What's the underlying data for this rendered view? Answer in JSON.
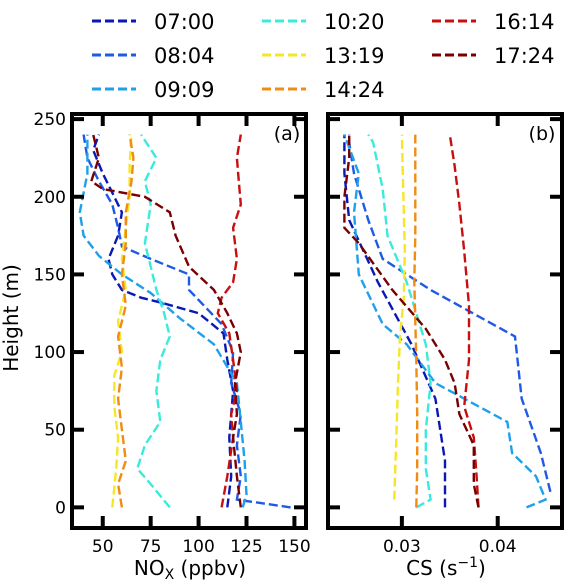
{
  "legend": {
    "entries": [
      {
        "label": "07:00",
        "color": "#0a18b4"
      },
      {
        "label": "08:04",
        "color": "#1e5ae6"
      },
      {
        "label": "09:09",
        "color": "#1ea0eb"
      },
      {
        "label": "10:20",
        "color": "#3ceadc"
      },
      {
        "label": "13:19",
        "color": "#f5e628"
      },
      {
        "label": "14:24",
        "color": "#f08c14"
      },
      {
        "label": "16:14",
        "color": "#c80f0f"
      },
      {
        "label": "17:24",
        "color": "#780000"
      }
    ]
  },
  "chart_data": [
    {
      "type": "line",
      "panel_label": "(a)",
      "xlabel_main": "NO",
      "xlabel_sub": "X",
      "xlabel_unit": " (ppbv)",
      "ylabel": "Height (m)",
      "xlim": [
        35,
        155
      ],
      "ylim": [
        -12,
        252
      ],
      "xticks": [
        50,
        75,
        100,
        125,
        150
      ],
      "yticks": [
        0,
        50,
        100,
        150,
        200,
        250
      ],
      "series": [
        {
          "name": "07:00",
          "color": "#0a18b4",
          "points": [
            [
              115,
              0
            ],
            [
              117,
              20
            ],
            [
              116,
              45
            ],
            [
              117,
              60
            ],
            [
              118,
              75
            ],
            [
              115,
              95
            ],
            [
              113,
              112
            ],
            [
              100,
              125
            ],
            [
              80,
              132
            ],
            [
              70,
              135
            ],
            [
              60,
              140
            ],
            [
              55,
              150
            ],
            [
              53,
              160
            ],
            [
              58,
              175
            ],
            [
              60,
              190
            ],
            [
              50,
              215
            ],
            [
              45,
              230
            ],
            [
              48,
              240
            ]
          ]
        },
        {
          "name": "08:04",
          "color": "#1e5ae6",
          "points": [
            [
              148,
              0
            ],
            [
              120,
              5
            ],
            [
              122,
              20
            ],
            [
              120,
              40
            ],
            [
              122,
              60
            ],
            [
              117,
              80
            ],
            [
              118,
              100
            ],
            [
              112,
              118
            ],
            [
              95,
              140
            ],
            [
              95,
              150
            ],
            [
              75,
              160
            ],
            [
              60,
              168
            ],
            [
              58,
              180
            ],
            [
              55,
              195
            ],
            [
              48,
              210
            ],
            [
              42,
              225
            ],
            [
              40,
              240
            ]
          ]
        },
        {
          "name": "09:09",
          "color": "#1ea0eb",
          "points": [
            [
              123,
              0
            ],
            [
              125,
              8
            ],
            [
              124,
              30
            ],
            [
              122,
              55
            ],
            [
              120,
              80
            ],
            [
              108,
              105
            ],
            [
              90,
              122
            ],
            [
              75,
              138
            ],
            [
              60,
              150
            ],
            [
              48,
              162
            ],
            [
              40,
              175
            ],
            [
              38,
              190
            ],
            [
              42,
              215
            ],
            [
              42,
              240
            ]
          ]
        },
        {
          "name": "10:20",
          "color": "#3ceadc",
          "points": [
            [
              85,
              0
            ],
            [
              75,
              15
            ],
            [
              68,
              25
            ],
            [
              72,
              40
            ],
            [
              80,
              55
            ],
            [
              78,
              75
            ],
            [
              80,
              95
            ],
            [
              85,
              110
            ],
            [
              82,
              125
            ],
            [
              78,
              140
            ],
            [
              75,
              155
            ],
            [
              72,
              170
            ],
            [
              75,
              195
            ],
            [
              72,
              210
            ],
            [
              78,
              225
            ],
            [
              70,
              240
            ]
          ]
        },
        {
          "name": "13:19",
          "color": "#f5e628",
          "points": [
            [
              55,
              0
            ],
            [
              57,
              25
            ],
            [
              58,
              45
            ],
            [
              56,
              65
            ],
            [
              56,
              85
            ],
            [
              60,
              100
            ],
            [
              58,
              120
            ],
            [
              62,
              140
            ],
            [
              60,
              160
            ],
            [
              62,
              180
            ],
            [
              64,
              200
            ],
            [
              64,
              220
            ],
            [
              65,
              240
            ]
          ]
        },
        {
          "name": "14:24",
          "color": "#f08c14",
          "points": [
            [
              60,
              0
            ],
            [
              58,
              15
            ],
            [
              62,
              30
            ],
            [
              60,
              50
            ],
            [
              58,
              70
            ],
            [
              60,
              90
            ],
            [
              58,
              110
            ],
            [
              62,
              130
            ],
            [
              60,
              150
            ],
            [
              62,
              170
            ],
            [
              62,
              190
            ],
            [
              65,
              210
            ],
            [
              66,
              225
            ],
            [
              64,
              240
            ]
          ]
        },
        {
          "name": "16:14",
          "color": "#c80f0f",
          "points": [
            [
              112,
              0
            ],
            [
              115,
              20
            ],
            [
              118,
              45
            ],
            [
              117,
              60
            ],
            [
              120,
              75
            ],
            [
              118,
              95
            ],
            [
              116,
              112
            ],
            [
              110,
              125
            ],
            [
              112,
              135
            ],
            [
              118,
              145
            ],
            [
              120,
              160
            ],
            [
              118,
              180
            ],
            [
              122,
              195
            ],
            [
              121,
              210
            ],
            [
              120,
              225
            ],
            [
              122,
              240
            ]
          ]
        },
        {
          "name": "17:24",
          "color": "#780000",
          "points": [
            [
              122,
              0
            ],
            [
              120,
              20
            ],
            [
              118,
              45
            ],
            [
              120,
              60
            ],
            [
              119,
              80
            ],
            [
              122,
              100
            ],
            [
              120,
              112
            ],
            [
              115,
              125
            ],
            [
              108,
              140
            ],
            [
              95,
              155
            ],
            [
              88,
              175
            ],
            [
              85,
              190
            ],
            [
              72,
              200
            ],
            [
              50,
              205
            ],
            [
              44,
              210
            ],
            [
              48,
              225
            ],
            [
              45,
              240
            ]
          ]
        }
      ]
    },
    {
      "type": "line",
      "panel_label": "(b)",
      "xlabel_main": "CS (s",
      "xlabel_sup": "−1",
      "xlabel_unit": ")",
      "xlim": [
        0.0225,
        0.0465
      ],
      "ylim": [
        -12,
        252
      ],
      "xticks": [
        0.03,
        0.04
      ],
      "xtick_labels": [
        "0.03",
        "0.04"
      ],
      "series": [
        {
          "name": "07:00",
          "color": "#0a18b4",
          "points": [
            [
              0.0345,
              0
            ],
            [
              0.0345,
              15
            ],
            [
              0.0345,
              30
            ],
            [
              0.0335,
              70
            ],
            [
              0.031,
              105
            ],
            [
              0.0275,
              145
            ],
            [
              0.0245,
              185
            ],
            [
              0.024,
              215
            ],
            [
              0.024,
              240
            ]
          ]
        },
        {
          "name": "08:04",
          "color": "#1e5ae6",
          "points": [
            [
              0.0455,
              10
            ],
            [
              0.0445,
              35
            ],
            [
              0.0425,
              70
            ],
            [
              0.0418,
              110
            ],
            [
              0.033,
              140
            ],
            [
              0.028,
              160
            ],
            [
              0.0265,
              185
            ],
            [
              0.025,
              215
            ],
            [
              0.0245,
              235
            ],
            [
              0.0245,
              240
            ]
          ]
        },
        {
          "name": "09:09",
          "color": "#1ea0eb",
          "points": [
            [
              0.043,
              0
            ],
            [
              0.045,
              5
            ],
            [
              0.044,
              20
            ],
            [
              0.0415,
              35
            ],
            [
              0.041,
              55
            ],
            [
              0.0335,
              80
            ],
            [
              0.0305,
              105
            ],
            [
              0.028,
              118
            ],
            [
              0.0255,
              150
            ],
            [
              0.025,
              190
            ],
            [
              0.0255,
              215
            ],
            [
              0.024,
              240
            ]
          ]
        },
        {
          "name": "10:20",
          "color": "#3ceadc",
          "points": [
            [
              0.0315,
              0
            ],
            [
              0.033,
              5
            ],
            [
              0.0325,
              25
            ],
            [
              0.0325,
              50
            ],
            [
              0.033,
              80
            ],
            [
              0.0325,
              105
            ],
            [
              0.0315,
              125
            ],
            [
              0.0305,
              145
            ],
            [
              0.0285,
              175
            ],
            [
              0.028,
              205
            ],
            [
              0.027,
              235
            ],
            [
              0.0265,
              240
            ]
          ]
        },
        {
          "name": "13:19",
          "color": "#f5e628",
          "points": [
            [
              0.0292,
              5
            ],
            [
              0.0294,
              40
            ],
            [
              0.0296,
              80
            ],
            [
              0.0298,
              110
            ],
            [
              0.0302,
              135
            ],
            [
              0.0303,
              165
            ],
            [
              0.0302,
              190
            ],
            [
              0.0301,
              215
            ],
            [
              0.03,
              240
            ]
          ]
        },
        {
          "name": "14:24",
          "color": "#f08c14",
          "points": [
            [
              0.0315,
              0
            ],
            [
              0.0316,
              25
            ],
            [
              0.0316,
              60
            ],
            [
              0.0315,
              95
            ],
            [
              0.0314,
              120
            ],
            [
              0.0313,
              145
            ],
            [
              0.0314,
              175
            ],
            [
              0.0314,
              205
            ],
            [
              0.0314,
              240
            ]
          ]
        },
        {
          "name": "16:14",
          "color": "#c80f0f",
          "points": [
            [
              0.038,
              0
            ],
            [
              0.0378,
              20
            ],
            [
              0.0375,
              45
            ],
            [
              0.0365,
              65
            ],
            [
              0.037,
              95
            ],
            [
              0.037,
              130
            ],
            [
              0.0365,
              165
            ],
            [
              0.036,
              195
            ],
            [
              0.0355,
              220
            ],
            [
              0.035,
              240
            ]
          ]
        },
        {
          "name": "17:24",
          "color": "#780000",
          "points": [
            [
              0.038,
              0
            ],
            [
              0.0375,
              15
            ],
            [
              0.0375,
              40
            ],
            [
              0.036,
              60
            ],
            [
              0.0355,
              80
            ],
            [
              0.0345,
              95
            ],
            [
              0.0325,
              115
            ],
            [
              0.029,
              140
            ],
            [
              0.0255,
              170
            ],
            [
              0.024,
              180
            ],
            [
              0.024,
              200
            ],
            [
              0.0245,
              225
            ],
            [
              0.0245,
              240
            ]
          ]
        }
      ]
    }
  ]
}
